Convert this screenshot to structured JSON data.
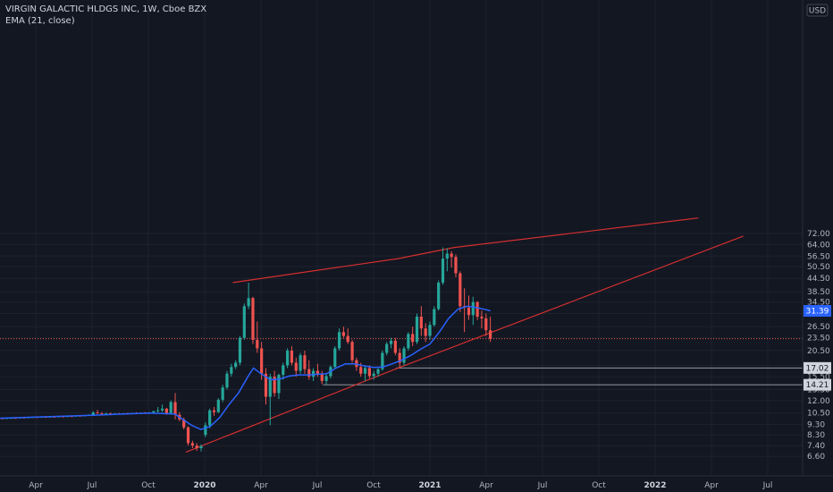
{
  "header": {
    "title": "VIRGIN GALACTIC HLDGS INC, 1W, Cboe BZX",
    "indicator": "EMA (21, close)"
  },
  "currency_badge": "USD",
  "chart_data": {
    "type": "candlestick",
    "scale": "log",
    "ylim": [
      6.0,
      85.0
    ],
    "y_ticks": [
      "6.60",
      "7.40",
      "8.30",
      "9.30",
      "10.50",
      "12.00",
      "13.50",
      "15.50",
      "17.50",
      "20.50",
      "23.50",
      "26.50",
      "30.50",
      "34.50",
      "38.50",
      "44.50",
      "50.50",
      "56.50",
      "64.00",
      "72.00"
    ],
    "x_ticks": [
      {
        "label": "Apr",
        "t": 0.0,
        "bold": false
      },
      {
        "label": "Jul",
        "t": 3.0,
        "bold": false
      },
      {
        "label": "Oct",
        "t": 6.0,
        "bold": false
      },
      {
        "label": "2020",
        "t": 9.0,
        "bold": true
      },
      {
        "label": "Apr",
        "t": 12.0,
        "bold": false
      },
      {
        "label": "Jul",
        "t": 15.0,
        "bold": false
      },
      {
        "label": "Oct",
        "t": 18.0,
        "bold": false
      },
      {
        "label": "2021",
        "t": 21.0,
        "bold": true
      },
      {
        "label": "Apr",
        "t": 24.0,
        "bold": false
      },
      {
        "label": "Jul",
        "t": 27.0,
        "bold": false
      },
      {
        "label": "Oct",
        "t": 30.0,
        "bold": false
      },
      {
        "label": "2022",
        "t": 33.0,
        "bold": true
      },
      {
        "label": "Apr",
        "t": 36.0,
        "bold": false
      },
      {
        "label": "Jul",
        "t": 39.0,
        "bold": false
      }
    ],
    "price_tags": [
      {
        "label": "31.39",
        "value": 31.39,
        "kind": "ema"
      },
      {
        "label": "17.02",
        "value": 17.02,
        "kind": "level"
      },
      {
        "label": "14.21",
        "value": 14.21,
        "kind": "level"
      }
    ],
    "horizontal_lines": [
      {
        "value": 17.02,
        "from_t": 19.2
      },
      {
        "value": 14.21,
        "from_t": 15.3
      }
    ],
    "current_price": 23.3,
    "trendlines": [
      {
        "name": "upper-channel",
        "points": [
          [
            10.5,
            42.5
          ],
          [
            19.3,
            55.0
          ],
          [
            22.3,
            62.0
          ],
          [
            35.3,
            85.0
          ]
        ]
      },
      {
        "name": "lower-support",
        "points": [
          [
            8.0,
            6.9
          ],
          [
            19.3,
            17.0
          ],
          [
            37.7,
            70.0
          ]
        ]
      }
    ],
    "candles": [
      [
        -2.0,
        9.9,
        9.95,
        9.85,
        9.92
      ],
      [
        -1.77,
        9.92,
        9.97,
        9.87,
        9.9
      ],
      [
        -1.54,
        9.9,
        9.96,
        9.86,
        9.94
      ],
      [
        -1.31,
        9.94,
        10.0,
        9.9,
        9.96
      ],
      [
        -1.08,
        9.96,
        10.02,
        9.92,
        9.95
      ],
      [
        -0.85,
        9.95,
        10.02,
        9.91,
        10.0
      ],
      [
        -0.62,
        10.0,
        10.06,
        9.95,
        9.98
      ],
      [
        -0.39,
        9.98,
        10.05,
        9.94,
        10.02
      ],
      [
        -0.16,
        10.02,
        10.08,
        9.97,
        10.05
      ],
      [
        0.07,
        10.05,
        10.1,
        9.99,
        10.03
      ],
      [
        0.3,
        10.03,
        10.1,
        9.99,
        10.07
      ],
      [
        0.53,
        10.07,
        10.12,
        10.02,
        10.05
      ],
      [
        0.76,
        10.05,
        10.12,
        10.0,
        10.09
      ],
      [
        0.99,
        10.09,
        10.15,
        10.04,
        10.08
      ],
      [
        1.22,
        10.08,
        10.15,
        10.03,
        10.12
      ],
      [
        1.45,
        10.12,
        10.18,
        10.06,
        10.1
      ],
      [
        1.68,
        10.1,
        10.17,
        10.05,
        10.15
      ],
      [
        1.91,
        10.15,
        10.22,
        10.09,
        10.13
      ],
      [
        2.14,
        10.13,
        10.22,
        10.08,
        10.2
      ],
      [
        2.37,
        10.2,
        10.28,
        10.14,
        10.18
      ],
      [
        2.6,
        10.18,
        10.28,
        10.12,
        10.25
      ],
      [
        2.83,
        10.25,
        10.35,
        10.18,
        10.3
      ],
      [
        3.06,
        10.3,
        10.7,
        10.22,
        10.55
      ],
      [
        3.29,
        10.55,
        10.85,
        10.4,
        10.45
      ],
      [
        3.52,
        10.45,
        10.6,
        10.35,
        10.4
      ],
      [
        3.75,
        10.4,
        10.52,
        10.3,
        10.45
      ],
      [
        3.98,
        10.45,
        10.55,
        10.36,
        10.4
      ],
      [
        4.21,
        10.4,
        10.5,
        10.32,
        10.42
      ],
      [
        4.44,
        10.42,
        10.52,
        10.35,
        10.4
      ],
      [
        4.67,
        10.4,
        10.5,
        10.32,
        10.45
      ],
      [
        4.9,
        10.45,
        10.55,
        10.38,
        10.42
      ],
      [
        5.13,
        10.42,
        10.52,
        10.35,
        10.48
      ],
      [
        5.36,
        10.48,
        10.58,
        10.4,
        10.45
      ],
      [
        5.59,
        10.45,
        10.56,
        10.38,
        10.5
      ],
      [
        5.82,
        10.5,
        10.62,
        10.42,
        10.48
      ],
      [
        6.05,
        10.48,
        10.6,
        10.4,
        10.55
      ],
      [
        6.28,
        10.55,
        10.75,
        10.45,
        10.7
      ],
      [
        6.51,
        10.7,
        11.2,
        10.55,
        10.8
      ],
      [
        6.74,
        10.8,
        11.5,
        10.6,
        11.0
      ],
      [
        6.97,
        11.0,
        11.1,
        10.3,
        10.5
      ],
      [
        7.2,
        10.5,
        12.0,
        10.3,
        11.8
      ],
      [
        7.43,
        11.8,
        13.0,
        9.8,
        10.3
      ],
      [
        7.66,
        10.3,
        10.6,
        9.6,
        9.8
      ],
      [
        7.89,
        9.8,
        10.0,
        8.8,
        9.0
      ],
      [
        8.12,
        9.0,
        9.1,
        7.4,
        7.6
      ],
      [
        8.35,
        7.6,
        7.8,
        7.2,
        7.4
      ],
      [
        8.58,
        7.4,
        7.6,
        7.0,
        7.2
      ],
      [
        8.81,
        7.2,
        7.5,
        6.95,
        7.35
      ],
      [
        9.04,
        8.3,
        9.5,
        8.1,
        9.2
      ],
      [
        9.27,
        9.2,
        11.0,
        8.9,
        10.8
      ],
      [
        9.5,
        10.8,
        11.2,
        10.2,
        10.6
      ],
      [
        9.73,
        10.6,
        12.3,
        10.5,
        12.1
      ],
      [
        9.96,
        12.1,
        14.2,
        11.8,
        13.8
      ],
      [
        10.19,
        13.8,
        16.5,
        13.5,
        16.0
      ],
      [
        10.42,
        16.0,
        17.8,
        15.5,
        17.2
      ],
      [
        10.65,
        17.2,
        18.5,
        16.8,
        18.0
      ],
      [
        10.88,
        18.0,
        24.0,
        17.5,
        23.5
      ],
      [
        11.11,
        23.5,
        34.0,
        23.0,
        33.0
      ],
      [
        11.34,
        33.0,
        42.5,
        32.0,
        36.0
      ],
      [
        11.57,
        36.0,
        36.5,
        22.0,
        23.0
      ],
      [
        11.8,
        23.0,
        28.0,
        20.0,
        21.0
      ],
      [
        12.03,
        21.0,
        22.5,
        15.0,
        16.0
      ],
      [
        12.26,
        16.0,
        17.0,
        11.5,
        12.5
      ],
      [
        12.49,
        12.5,
        16.0,
        9.2,
        15.5
      ],
      [
        12.72,
        15.5,
        16.5,
        12.5,
        13.0
      ],
      [
        12.95,
        13.0,
        16.0,
        12.2,
        15.8
      ],
      [
        13.18,
        15.8,
        18.0,
        15.0,
        17.5
      ],
      [
        13.41,
        17.5,
        21.0,
        17.0,
        20.5
      ],
      [
        13.64,
        20.5,
        21.5,
        17.5,
        18.0
      ],
      [
        13.87,
        18.0,
        19.0,
        15.5,
        16.5
      ],
      [
        14.1,
        16.5,
        20.0,
        16.0,
        19.5
      ],
      [
        14.33,
        19.5,
        20.5,
        16.0,
        16.8
      ],
      [
        14.56,
        16.8,
        18.5,
        15.0,
        15.5
      ],
      [
        14.79,
        15.5,
        17.0,
        14.8,
        16.5
      ],
      [
        15.02,
        16.5,
        17.8,
        15.5,
        16.0
      ],
      [
        15.25,
        16.0,
        16.5,
        14.3,
        14.8
      ],
      [
        15.48,
        14.8,
        16.0,
        14.2,
        15.6
      ],
      [
        15.71,
        15.6,
        17.5,
        15.2,
        17.2
      ],
      [
        15.94,
        17.2,
        21.5,
        17.0,
        21.0
      ],
      [
        16.17,
        21.0,
        26.0,
        20.5,
        25.0
      ],
      [
        16.4,
        25.0,
        26.5,
        23.5,
        24.0
      ],
      [
        16.63,
        24.0,
        26.0,
        22.0,
        22.5
      ],
      [
        16.86,
        22.5,
        23.0,
        18.0,
        18.5
      ],
      [
        17.09,
        18.5,
        19.0,
        16.5,
        17.2
      ],
      [
        17.32,
        17.2,
        18.0,
        15.5,
        16.0
      ],
      [
        17.55,
        16.0,
        17.5,
        14.8,
        17.0
      ],
      [
        17.78,
        17.0,
        17.5,
        15.2,
        15.6
      ],
      [
        18.01,
        15.6,
        16.5,
        15.0,
        16.0
      ],
      [
        18.24,
        16.0,
        17.0,
        15.5,
        16.8
      ],
      [
        18.47,
        16.8,
        20.5,
        16.5,
        20.0
      ],
      [
        18.7,
        20.0,
        22.5,
        19.5,
        22.0
      ],
      [
        18.93,
        22.0,
        23.5,
        21.0,
        22.8
      ],
      [
        19.16,
        22.8,
        23.5,
        19.5,
        20.0
      ],
      [
        19.39,
        20.0,
        21.0,
        17.0,
        18.0
      ],
      [
        19.62,
        18.0,
        21.5,
        17.5,
        21.0
      ],
      [
        19.85,
        21.0,
        25.0,
        20.5,
        24.5
      ],
      [
        20.08,
        24.5,
        26.5,
        21.5,
        22.5
      ],
      [
        20.31,
        22.5,
        30.5,
        22.0,
        29.5
      ],
      [
        20.54,
        29.5,
        33.0,
        24.0,
        26.0
      ],
      [
        20.77,
        26.0,
        27.5,
        22.5,
        24.0
      ],
      [
        21.0,
        24.0,
        28.0,
        23.0,
        27.0
      ],
      [
        21.23,
        27.0,
        33.0,
        26.5,
        32.0
      ],
      [
        21.46,
        32.0,
        43.5,
        31.5,
        42.5
      ],
      [
        21.69,
        42.5,
        62.0,
        41.5,
        55.0
      ],
      [
        21.92,
        55.0,
        61.5,
        48.0,
        58.0
      ],
      [
        22.15,
        58.0,
        59.5,
        50.0,
        56.0
      ],
      [
        22.38,
        56.0,
        57.5,
        45.0,
        47.0
      ],
      [
        22.61,
        47.0,
        48.0,
        31.0,
        33.0
      ],
      [
        22.84,
        33.0,
        40.0,
        25.0,
        32.5
      ],
      [
        23.07,
        32.5,
        37.0,
        28.5,
        30.0
      ],
      [
        23.3,
        30.0,
        36.5,
        27.0,
        34.5
      ],
      [
        23.53,
        34.5,
        34.8,
        28.5,
        29.5
      ],
      [
        23.76,
        29.5,
        31.5,
        26.0,
        29.0
      ],
      [
        23.99,
        29.0,
        30.5,
        24.0,
        25.5
      ],
      [
        24.22,
        25.5,
        29.5,
        22.5,
        23.3
      ]
    ],
    "ema_points": [
      [
        -2.0,
        9.92
      ],
      [
        3.0,
        10.25
      ],
      [
        6.0,
        10.5
      ],
      [
        7.4,
        10.4
      ],
      [
        8.3,
        9.2
      ],
      [
        8.8,
        8.8
      ],
      [
        9.3,
        9.1
      ],
      [
        9.8,
        10.0
      ],
      [
        10.3,
        11.5
      ],
      [
        10.8,
        13.0
      ],
      [
        11.3,
        15.5
      ],
      [
        11.6,
        17.0
      ],
      [
        12.0,
        16.0
      ],
      [
        12.5,
        15.0
      ],
      [
        13.0,
        15.1
      ],
      [
        13.5,
        15.6
      ],
      [
        14.0,
        15.8
      ],
      [
        14.5,
        15.8
      ],
      [
        15.0,
        15.9
      ],
      [
        15.5,
        16.0
      ],
      [
        16.0,
        17.0
      ],
      [
        16.5,
        17.8
      ],
      [
        17.0,
        17.8
      ],
      [
        17.5,
        17.4
      ],
      [
        18.0,
        17.1
      ],
      [
        18.5,
        17.2
      ],
      [
        19.0,
        17.8
      ],
      [
        19.5,
        18.5
      ],
      [
        20.0,
        19.5
      ],
      [
        20.5,
        20.8
      ],
      [
        21.0,
        22.0
      ],
      [
        21.5,
        25.0
      ],
      [
        22.0,
        29.0
      ],
      [
        22.5,
        32.0
      ],
      [
        23.0,
        33.0
      ],
      [
        23.5,
        32.5
      ],
      [
        24.0,
        31.8
      ],
      [
        24.22,
        31.39
      ]
    ]
  }
}
